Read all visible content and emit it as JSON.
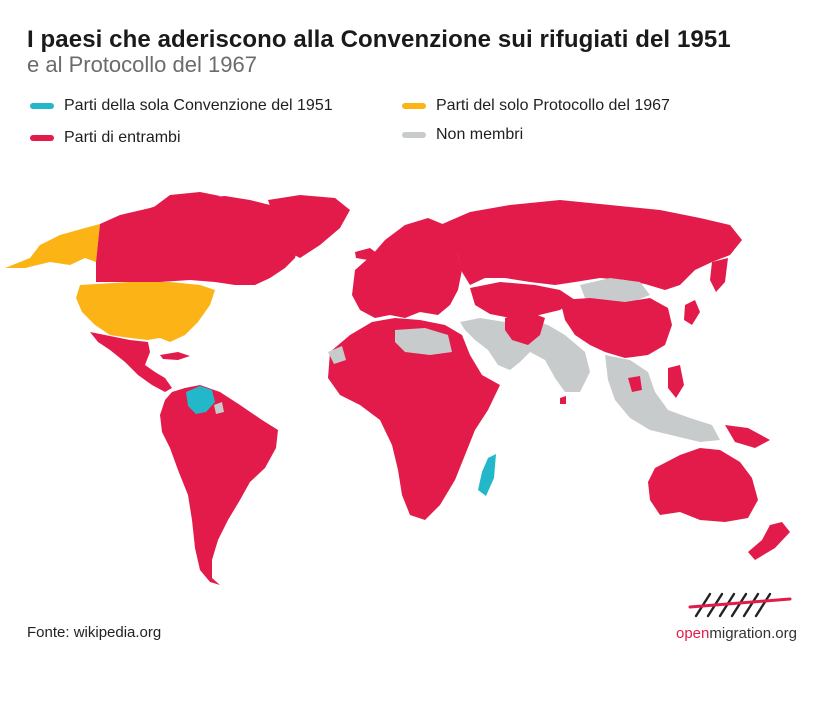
{
  "title": "I paesi che aderiscono alla Convenzione sui rifugiati del 1951",
  "subtitle": "e al Protocollo del 1967",
  "legend": [
    {
      "label": "Parti della sola Convenzione del 1951",
      "color": "#22b8c9"
    },
    {
      "label": "Parti del solo Protocollo del 1967",
      "color": "#fbb316"
    },
    {
      "label": "Parti di entrambi",
      "color": "#e31b4a"
    },
    {
      "label": "Non membri",
      "color": "#c8cbcc"
    }
  ],
  "source": "Fonte: wikipedia.org",
  "logo": {
    "part1": "open",
    "part2": "migration.org"
  },
  "map_icon": "world-map",
  "logo_icon": "openmigration-logo-icon"
}
